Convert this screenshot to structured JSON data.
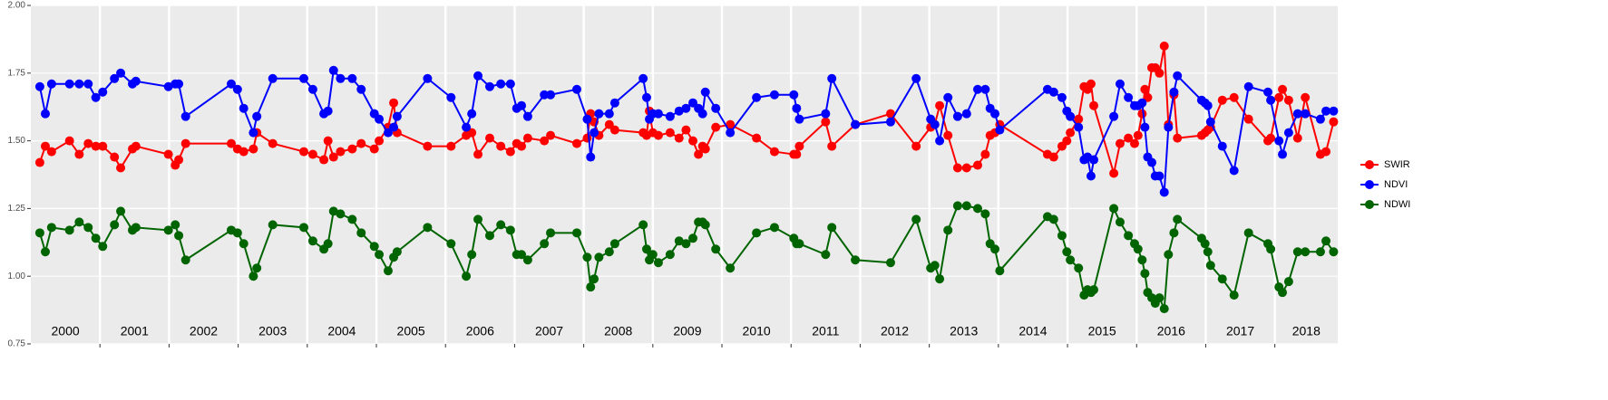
{
  "chart_data": {
    "type": "line",
    "x": [
      2000.13,
      2000.21,
      2000.3,
      2000.56,
      2000.7,
      2000.83,
      2000.94,
      2001.04,
      2001.21,
      2001.3,
      2001.47,
      2001.52,
      2001.99,
      2002.09,
      2002.14,
      2002.24,
      2002.9,
      2002.99,
      2003.08,
      2003.22,
      2003.27,
      2003.5,
      2003.95,
      2004.08,
      2004.24,
      2004.3,
      2004.38,
      2004.48,
      2004.65,
      2004.78,
      2004.97,
      2005.04,
      2005.17,
      2005.25,
      2005.3,
      2005.74,
      2006.08,
      2006.3,
      2006.38,
      2006.47,
      2006.64,
      2006.8,
      2006.94,
      2007.03,
      2007.1,
      2007.19,
      2007.43,
      2007.52,
      2007.9,
      2008.05,
      2008.1,
      2008.15,
      2008.22,
      2008.37,
      2008.45,
      2008.86,
      2008.91,
      2008.95,
      2009.0,
      2009.08,
      2009.25,
      2009.38,
      2009.48,
      2009.58,
      2009.66,
      2009.72,
      2009.76,
      2009.91,
      2010.12,
      2010.5,
      2010.76,
      2011.04,
      2011.08,
      2011.12,
      2011.5,
      2011.59,
      2011.93,
      2012.44,
      2012.81,
      2013.02,
      2013.08,
      2013.15,
      2013.27,
      2013.41,
      2013.54,
      2013.7,
      2013.81,
      2013.88,
      2013.95,
      2014.02,
      2014.71,
      2014.8,
      2014.92,
      2014.99,
      2015.04,
      2015.16,
      2015.24,
      2015.29,
      2015.34,
      2015.38,
      2015.67,
      2015.76,
      2015.88,
      2015.97,
      2016.02,
      2016.08,
      2016.12,
      2016.16,
      2016.22,
      2016.27,
      2016.33,
      2016.4,
      2016.46,
      2016.54,
      2016.59,
      2016.94,
      2016.99,
      2017.03,
      2017.07,
      2017.24,
      2017.41,
      2017.62,
      2017.9,
      2017.94,
      2018.06,
      2018.11,
      2018.2,
      2018.33,
      2018.44,
      2018.66,
      2018.74,
      2018.85
    ],
    "series": [
      {
        "name": "SWIR",
        "color": "#ff0000",
        "values": [
          1.42,
          1.48,
          1.46,
          1.5,
          1.45,
          1.49,
          1.48,
          1.48,
          1.44,
          1.4,
          1.47,
          1.48,
          1.45,
          1.41,
          1.43,
          1.49,
          1.49,
          1.47,
          1.46,
          1.47,
          1.53,
          1.49,
          1.46,
          1.45,
          1.43,
          1.5,
          1.44,
          1.46,
          1.47,
          1.49,
          1.47,
          1.5,
          1.55,
          1.64,
          1.53,
          1.48,
          1.48,
          1.52,
          1.53,
          1.45,
          1.51,
          1.48,
          1.46,
          1.49,
          1.48,
          1.51,
          1.5,
          1.52,
          1.49,
          1.51,
          1.6,
          1.57,
          1.52,
          1.56,
          1.54,
          1.53,
          1.52,
          1.61,
          1.53,
          1.52,
          1.53,
          1.51,
          1.54,
          1.5,
          1.45,
          1.48,
          1.47,
          1.55,
          1.56,
          1.51,
          1.46,
          1.45,
          1.45,
          1.48,
          1.57,
          1.48,
          1.56,
          1.6,
          1.48,
          1.55,
          1.56,
          1.63,
          1.52,
          1.4,
          1.4,
          1.41,
          1.45,
          1.52,
          1.53,
          1.56,
          1.45,
          1.44,
          1.48,
          1.5,
          1.53,
          1.58,
          1.7,
          1.69,
          1.71,
          1.63,
          1.38,
          1.49,
          1.51,
          1.49,
          1.52,
          1.6,
          1.69,
          1.66,
          1.77,
          1.77,
          1.75,
          1.85,
          1.56,
          1.67,
          1.51,
          1.52,
          1.53,
          1.54,
          1.55,
          1.65,
          1.66,
          1.58,
          1.5,
          1.51,
          1.66,
          1.69,
          1.65,
          1.51,
          1.66,
          1.45,
          1.46,
          1.57
        ]
      },
      {
        "name": "NDVI",
        "color": "#0000ff",
        "values": [
          1.7,
          1.6,
          1.71,
          1.71,
          1.71,
          1.71,
          1.66,
          1.68,
          1.73,
          1.75,
          1.71,
          1.72,
          1.7,
          1.71,
          1.71,
          1.59,
          1.71,
          1.69,
          1.62,
          1.53,
          1.59,
          1.73,
          1.73,
          1.69,
          1.6,
          1.61,
          1.76,
          1.73,
          1.73,
          1.69,
          1.6,
          1.58,
          1.53,
          1.55,
          1.59,
          1.73,
          1.66,
          1.55,
          1.6,
          1.74,
          1.7,
          1.71,
          1.71,
          1.62,
          1.63,
          1.59,
          1.67,
          1.67,
          1.69,
          1.58,
          1.44,
          1.53,
          1.6,
          1.6,
          1.64,
          1.73,
          1.66,
          1.58,
          1.6,
          1.6,
          1.59,
          1.61,
          1.62,
          1.64,
          1.62,
          1.6,
          1.68,
          1.62,
          1.53,
          1.66,
          1.67,
          1.67,
          1.62,
          1.58,
          1.6,
          1.73,
          1.56,
          1.57,
          1.73,
          1.58,
          1.56,
          1.5,
          1.66,
          1.59,
          1.6,
          1.69,
          1.69,
          1.62,
          1.6,
          1.54,
          1.69,
          1.68,
          1.66,
          1.61,
          1.59,
          1.55,
          1.43,
          1.44,
          1.37,
          1.43,
          1.59,
          1.71,
          1.66,
          1.63,
          1.63,
          1.64,
          1.55,
          1.44,
          1.42,
          1.37,
          1.37,
          1.31,
          1.55,
          1.68,
          1.74,
          1.65,
          1.64,
          1.63,
          1.57,
          1.48,
          1.39,
          1.7,
          1.68,
          1.65,
          1.5,
          1.45,
          1.53,
          1.6,
          1.6,
          1.58,
          1.61,
          1.61
        ]
      },
      {
        "name": "NDWI",
        "color": "#006400",
        "values": [
          1.16,
          1.09,
          1.18,
          1.17,
          1.2,
          1.18,
          1.14,
          1.11,
          1.19,
          1.24,
          1.17,
          1.18,
          1.17,
          1.19,
          1.15,
          1.06,
          1.17,
          1.16,
          1.12,
          1.0,
          1.03,
          1.19,
          1.18,
          1.13,
          1.1,
          1.12,
          1.24,
          1.23,
          1.21,
          1.16,
          1.11,
          1.08,
          1.02,
          1.07,
          1.09,
          1.18,
          1.12,
          1.0,
          1.08,
          1.21,
          1.15,
          1.19,
          1.17,
          1.08,
          1.08,
          1.06,
          1.12,
          1.16,
          1.16,
          1.07,
          0.96,
          0.99,
          1.07,
          1.09,
          1.12,
          1.19,
          1.1,
          1.06,
          1.08,
          1.05,
          1.08,
          1.13,
          1.12,
          1.14,
          1.2,
          1.2,
          1.19,
          1.1,
          1.03,
          1.16,
          1.18,
          1.14,
          1.12,
          1.12,
          1.08,
          1.18,
          1.06,
          1.05,
          1.21,
          1.03,
          1.04,
          0.99,
          1.17,
          1.26,
          1.26,
          1.25,
          1.23,
          1.12,
          1.1,
          1.02,
          1.22,
          1.21,
          1.15,
          1.09,
          1.06,
          1.03,
          0.93,
          0.95,
          0.94,
          0.95,
          1.25,
          1.2,
          1.15,
          1.12,
          1.1,
          1.06,
          1.01,
          0.94,
          0.92,
          0.9,
          0.92,
          0.88,
          1.08,
          1.16,
          1.21,
          1.14,
          1.12,
          1.09,
          1.04,
          0.99,
          0.93,
          1.16,
          1.12,
          1.1,
          0.96,
          0.94,
          0.98,
          1.09,
          1.09,
          1.09,
          1.13,
          1.09
        ]
      }
    ],
    "xlim": [
      2000,
      2018.91
    ],
    "years": [
      2000,
      2001,
      2002,
      2003,
      2004,
      2005,
      2006,
      2007,
      2008,
      2009,
      2010,
      2011,
      2012,
      2013,
      2014,
      2015,
      2016,
      2017,
      2018
    ],
    "ylim": [
      0.75,
      2.0
    ],
    "yticks": [
      0.75,
      {
        "value": 1.0,
        "label": "1.00"
      },
      1.25,
      {
        "value": 1.5,
        "label": "1.50"
      },
      1.75,
      {
        "value": 2.0,
        "label": "2.00"
      }
    ],
    "grid": true,
    "legend": "right"
  }
}
